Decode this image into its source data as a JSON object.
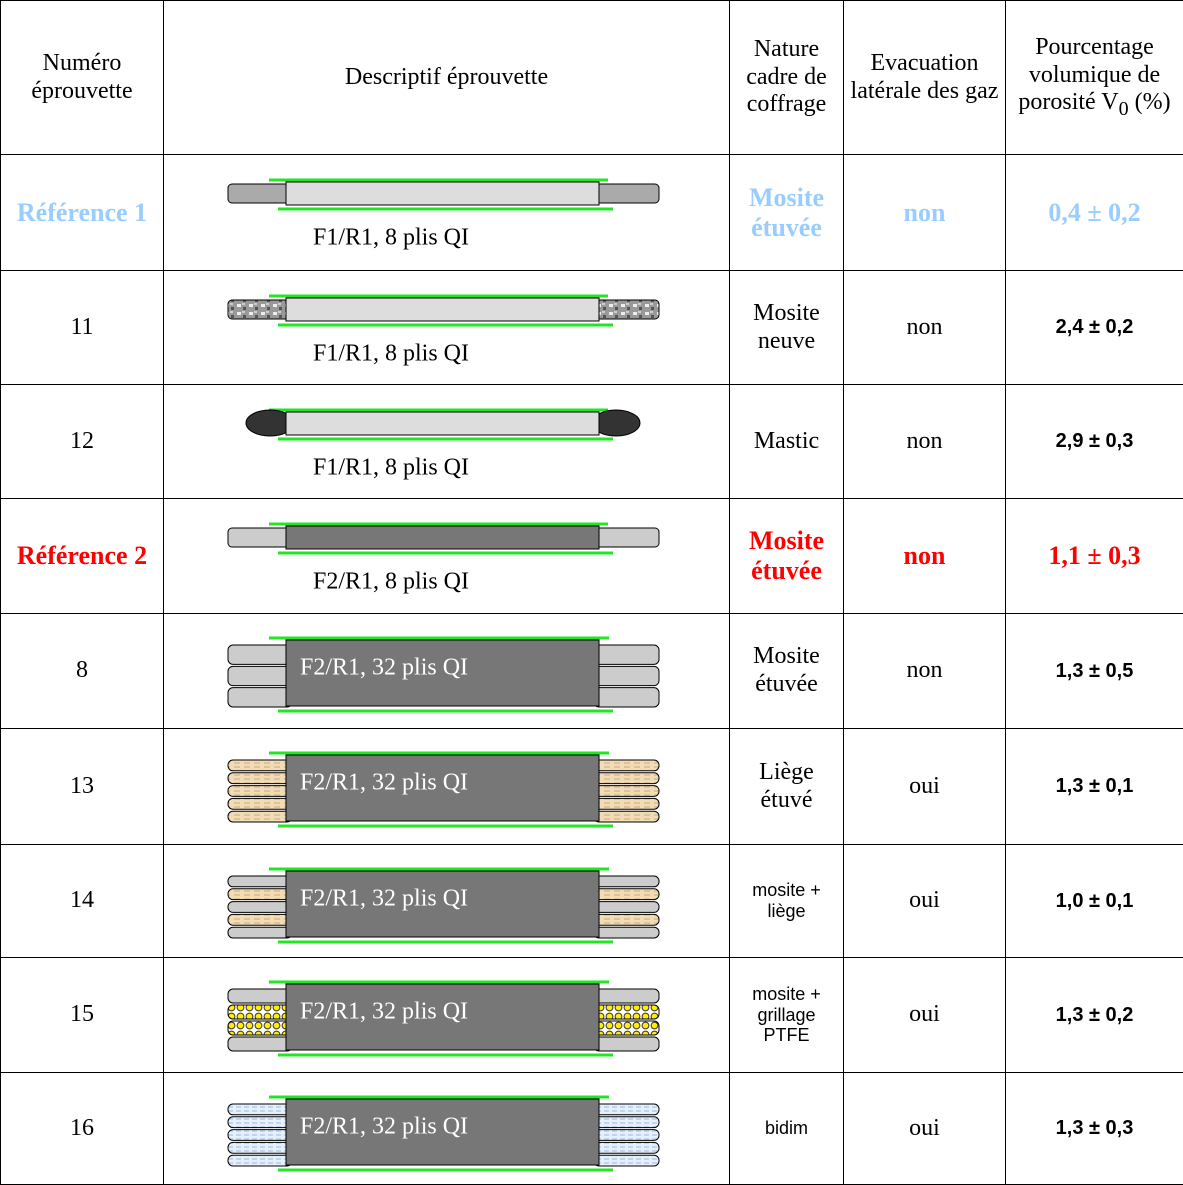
{
  "table": {
    "header": [
      "Numéro éprouvette",
      "Descriptif éprouvette",
      "Nature cadre de coffrage",
      "Evacuation latérale des gaz",
      {
        "text": "Pourcentage volumique de porosité V",
        "sub": "0",
        "tail": " (%)"
      }
    ],
    "rows": [
      {
        "id": "Référence 1",
        "specimen": "F1/R1, 8 plis QI",
        "frame": "Mosite étuvée",
        "venting": "non",
        "porosity": "0,4 ± 0,2",
        "color": "#99ccff"
      },
      {
        "id": "11",
        "specimen": "F1/R1, 8 plis QI",
        "frame": "Mosite neuve",
        "venting": "non",
        "porosity": "2,4 ± 0,2"
      },
      {
        "id": "12",
        "specimen": "F1/R1, 8 plis QI",
        "frame": "Mastic",
        "venting": "non",
        "porosity": "2,9 ± 0,3"
      },
      {
        "id": "Référence 2",
        "specimen": "F2/R1, 8 plis QI",
        "frame": "Mosite étuvée",
        "venting": "non",
        "porosity": "1,1 ± 0,3",
        "color": "#ff0000"
      },
      {
        "id": "8",
        "specimen": "F2/R1, 32 plis QI",
        "frame": "Mosite étuvée",
        "venting": "non",
        "porosity": "1,3 ± 0,5"
      },
      {
        "id": "13",
        "specimen": "F2/R1, 32 plis QI",
        "frame": "Liège étuvé",
        "venting": "oui",
        "porosity": "1,3 ± 0,1"
      },
      {
        "id": "14",
        "specimen": "F2/R1, 32 plis QI",
        "frame": "mosite + liège",
        "venting": "oui",
        "porosity": "1,0 ± 0,1"
      },
      {
        "id": "15",
        "specimen": "F2/R1, 32 plis QI",
        "frame": "mosite + grillage PTFE",
        "venting": "oui",
        "porosity": "1,3 ± 0,2"
      },
      {
        "id": "16",
        "specimen": "F2/R1, 32 plis QI",
        "frame": "bidim",
        "venting": "oui",
        "porosity": "1,3 ± 0,3"
      }
    ]
  }
}
